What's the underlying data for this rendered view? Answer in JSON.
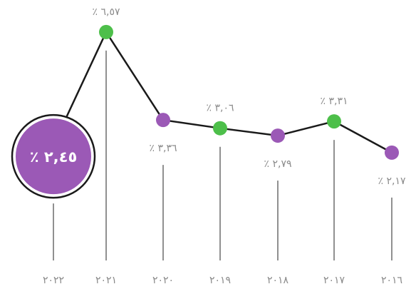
{
  "colors": {
    "green": "#4dbf4a",
    "purple": "#9b59b6",
    "line": "#1a1a1a",
    "stem": "#555555",
    "text": "#8a8a8a"
  },
  "chart_data": {
    "type": "line",
    "x": [
      "٢٠١٦",
      "٢٠١٧",
      "٢٠١٨",
      "٢٠١٩",
      "٢٠٢٠",
      "٢٠٢١",
      "٢٠٢٢"
    ],
    "values": [
      2.17,
      3.31,
      2.79,
      3.06,
      3.36,
      6.57,
      2.45
    ],
    "value_labels": [
      "٪ ٢,١٧",
      "٪ ٣,٣١",
      "٪ ٢,٧٩",
      "٪ ٣,٠٦",
      "٪ ٣,٣٦",
      "٪ ٦,٥٧",
      "٪ ٢,٤٥"
    ],
    "marker_colors": [
      "purple",
      "green",
      "purple",
      "green",
      "purple",
      "green",
      "purple"
    ],
    "highlight_index": 6,
    "grid": false,
    "legend": "none"
  }
}
